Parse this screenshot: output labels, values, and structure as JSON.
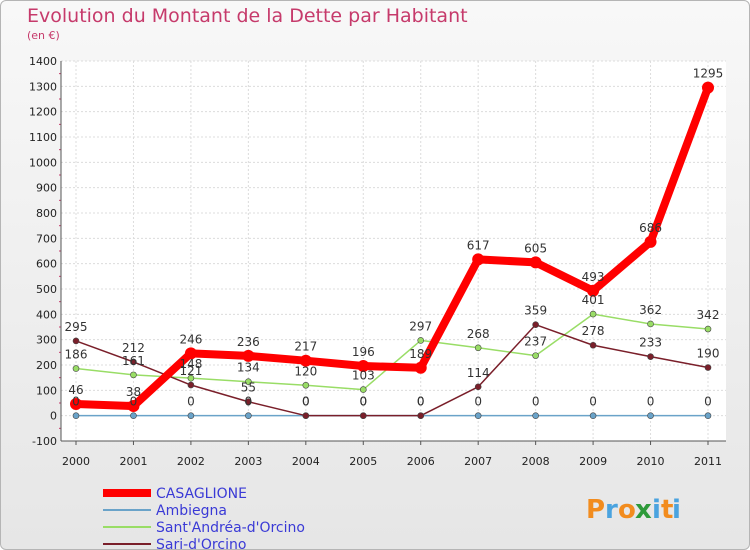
{
  "chart_data": {
    "type": "line",
    "title": "Evolution du Montant de la Dette par Habitant",
    "subtitle": "(en €)",
    "xlabel": "",
    "ylabel": "",
    "x": [
      "2000",
      "2001",
      "2002",
      "2003",
      "2004",
      "2005",
      "2006",
      "2007",
      "2008",
      "2009",
      "2010",
      "2011"
    ],
    "ylim": [
      -100,
      1400
    ],
    "yticks": [
      "-100",
      "0",
      "100",
      "200",
      "300",
      "400",
      "500",
      "600",
      "700",
      "800",
      "900",
      "1000",
      "1100",
      "1200",
      "1300",
      "1400"
    ],
    "grid": true,
    "legend": "bottom-left",
    "series": [
      {
        "name": "CASAGLIONE",
        "color": "#ff0000",
        "values": [
          46,
          38,
          246,
          236,
          217,
          196,
          189,
          617,
          605,
          493,
          686,
          1295
        ],
        "labels": [
          "46",
          "38",
          "246",
          "236",
          "217",
          "196",
          "189",
          "617",
          "605",
          "493",
          "686",
          "1295"
        ]
      },
      {
        "name": "Ambiegna",
        "color": "#6aa3c9",
        "values": [
          0,
          0,
          0,
          0,
          0,
          0,
          0,
          0,
          0,
          0,
          0,
          0
        ],
        "labels": [
          "0",
          "0",
          "0",
          "0",
          "0",
          "0",
          "0",
          "0",
          "0",
          "0",
          "0",
          "0"
        ]
      },
      {
        "name": "Sant'Andréa-d'Orcino",
        "color": "#99dd66",
        "values": [
          186,
          161,
          148,
          134,
          120,
          103,
          297,
          268,
          237,
          401,
          362,
          342
        ],
        "labels": [
          "186",
          "161",
          "148",
          "134",
          "120",
          "103",
          "297",
          "268",
          "237",
          "401",
          "362",
          "342"
        ]
      },
      {
        "name": "Sari-d'Orcino",
        "color": "#7a1f2a",
        "values": [
          295,
          212,
          121,
          55,
          0,
          0,
          0,
          114,
          359,
          278,
          233,
          190
        ],
        "labels": [
          "295",
          "212",
          "121",
          "55",
          "0",
          "0",
          "0",
          "114",
          "359",
          "278",
          "233",
          "190"
        ]
      }
    ]
  },
  "brand": {
    "letters": [
      "P",
      "r",
      "o",
      "x",
      "i",
      "t",
      "i"
    ],
    "colors": [
      "#f28c1e",
      "#4aa3df",
      "#f28c1e",
      "#2e9a3a",
      "#4aa3df",
      "#f28c1e",
      "#4aa3df"
    ]
  }
}
